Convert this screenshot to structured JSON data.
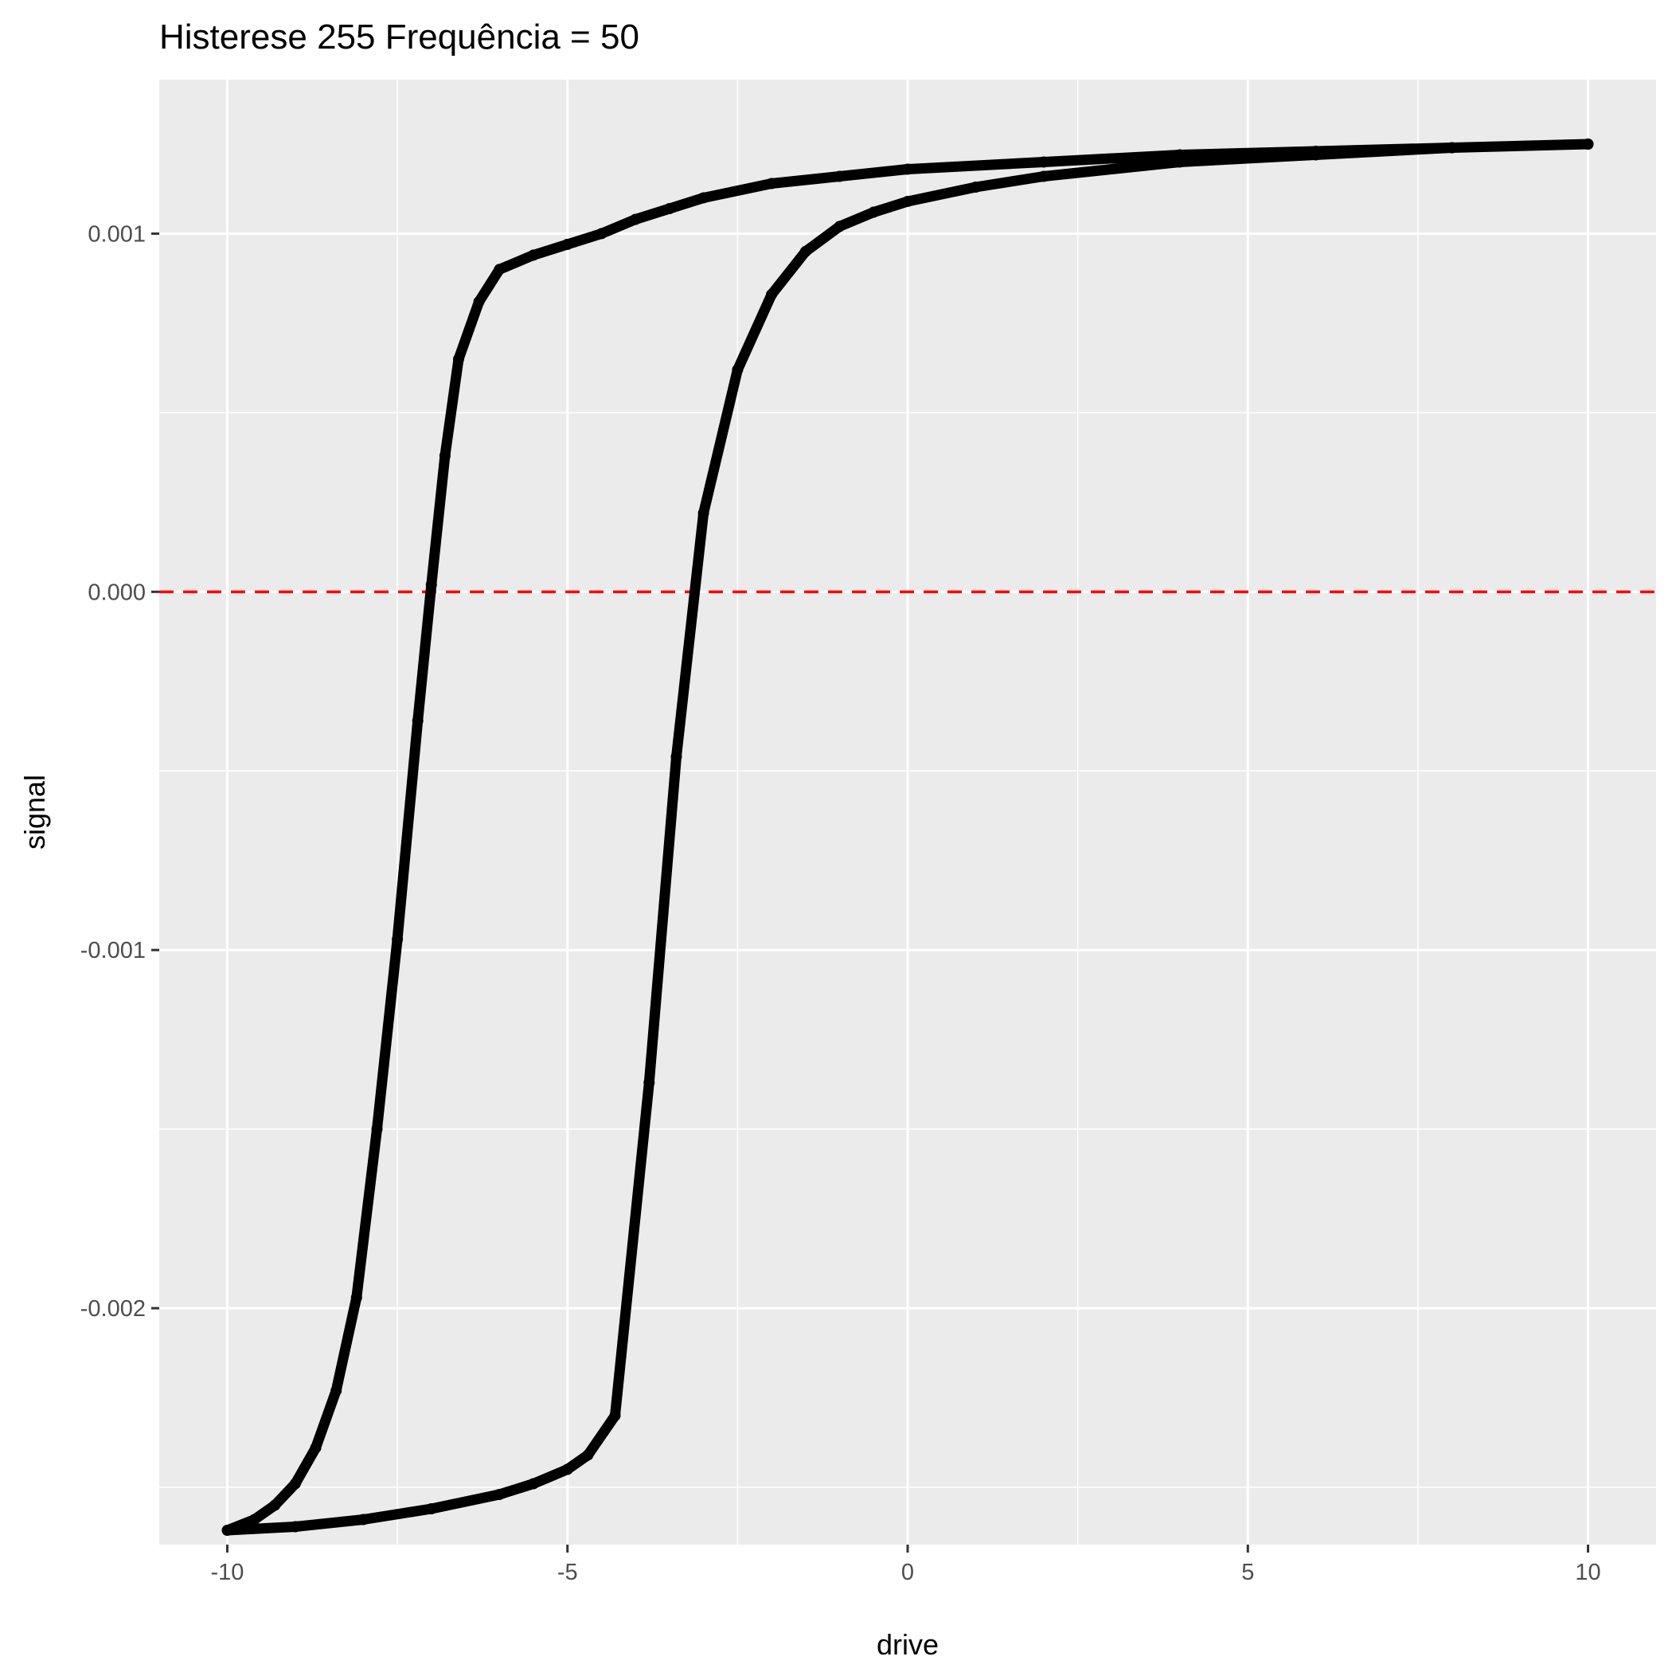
{
  "chart_data": {
    "type": "line",
    "title": "Histerese 255 Frequência = 50",
    "xlabel": "drive",
    "ylabel": "signal",
    "xlim": [
      -11,
      11
    ],
    "ylim": [
      -0.00266,
      0.00143
    ],
    "x_ticks": [
      -10,
      -5,
      0,
      5,
      10
    ],
    "x_tick_labels": [
      "-10",
      "-5",
      "0",
      "5",
      "10"
    ],
    "y_ticks": [
      -0.002,
      -0.001,
      0.0,
      0.001
    ],
    "y_tick_labels": [
      "-0.002",
      "-0.001",
      "0.000",
      "0.001"
    ],
    "grid": true,
    "legend": "none",
    "reference_line": {
      "y": 0.0,
      "style": "dashed",
      "color": "#ff0000"
    },
    "series": [
      {
        "color": "#000000",
        "x": [
          10,
          8,
          6,
          4,
          2,
          0,
          -1,
          -2,
          -3,
          -3.5,
          -4,
          -4.5,
          -5,
          -5.5,
          -6,
          -6.3,
          -6.6,
          -6.8,
          -7,
          -7.2,
          -7.5,
          -7.8,
          -8.1,
          -8.4,
          -8.7,
          -9,
          -9.3,
          -9.6,
          -10,
          -9,
          -8,
          -7,
          -6,
          -5.5,
          -5,
          -4.7,
          -4.3,
          -3.8,
          -3.4,
          -3,
          -2.5,
          -2,
          -1.5,
          -1,
          -0.5,
          0,
          1,
          2,
          4,
          6,
          8,
          10
        ],
        "y": [
          0.00125,
          0.00124,
          0.00123,
          0.00122,
          0.0012,
          0.00118,
          0.00116,
          0.00114,
          0.0011,
          0.00107,
          0.00104,
          0.001,
          0.00097,
          0.00094,
          0.0009,
          0.00081,
          0.00065,
          0.00038,
          2e-05,
          -0.00036,
          -0.00097,
          -0.0015,
          -0.00197,
          -0.00223,
          -0.00239,
          -0.00249,
          -0.00255,
          -0.00259,
          -0.00262,
          -0.00261,
          -0.00259,
          -0.00256,
          -0.00252,
          -0.00249,
          -0.00245,
          -0.00241,
          -0.0023,
          -0.00137,
          -0.00046,
          0.00022,
          0.00062,
          0.00083,
          0.00095,
          0.00102,
          0.00106,
          0.00109,
          0.00113,
          0.00116,
          0.0012,
          0.00122,
          0.00124,
          0.00125
        ]
      }
    ]
  }
}
